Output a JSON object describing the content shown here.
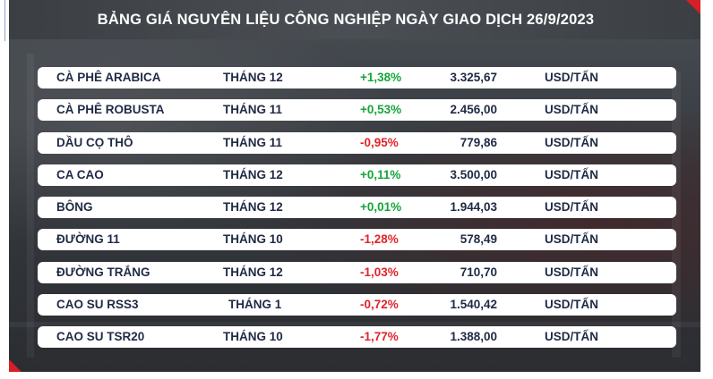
{
  "header": {
    "title": "BẢNG GIÁ NGUYÊN LIỆU CÔNG NGHIỆP NGÀY GIAO DỊCH 26/9/2023"
  },
  "colors": {
    "up": "#15a53a",
    "down": "#e0242b",
    "accent": "#d61f26",
    "text": "#1f2a44"
  },
  "rows": [
    {
      "name": "CÀ PHÊ ARABICA",
      "month": "THÁNG 12",
      "change": "+1,38%",
      "direction": "up",
      "price": "3.325,67",
      "unit": "USD/TẤN"
    },
    {
      "name": "CÀ PHÊ ROBUSTA",
      "month": "THÁNG 11",
      "change": "+0,53%",
      "direction": "up",
      "price": "2.456,00",
      "unit": "USD/TẤN"
    },
    {
      "name": "DẦU CỌ THÔ",
      "month": "THÁNG 11",
      "change": "-0,95%",
      "direction": "down",
      "price": "779,86",
      "unit": "USD/TẤN"
    },
    {
      "name": "CA CAO",
      "month": "THÁNG 12",
      "change": "+0,11%",
      "direction": "up",
      "price": "3.500,00",
      "unit": "USD/TẤN"
    },
    {
      "name": "BÔNG",
      "month": "THÁNG 12",
      "change": "+0,01%",
      "direction": "up",
      "price": "1.944,03",
      "unit": "USD/TẤN"
    },
    {
      "name": "ĐƯỜNG 11",
      "month": "THÁNG 10",
      "change": "-1,28%",
      "direction": "down",
      "price": "578,49",
      "unit": "USD/TẤN"
    },
    {
      "name": "ĐƯỜNG TRẮNG",
      "month": "THÁNG 12",
      "change": "-1,03%",
      "direction": "down",
      "price": "710,70",
      "unit": "USD/TẤN"
    },
    {
      "name": "CAO SU RSS3",
      "month": "THÁNG 1",
      "change": "-0,72%",
      "direction": "down",
      "price": "1.540,42",
      "unit": "USD/TẤN"
    },
    {
      "name": "CAO SU TSR20",
      "month": "THÁNG 10",
      "change": "-1,77%",
      "direction": "down",
      "price": "1.388,00",
      "unit": "USD/TẤN"
    }
  ]
}
